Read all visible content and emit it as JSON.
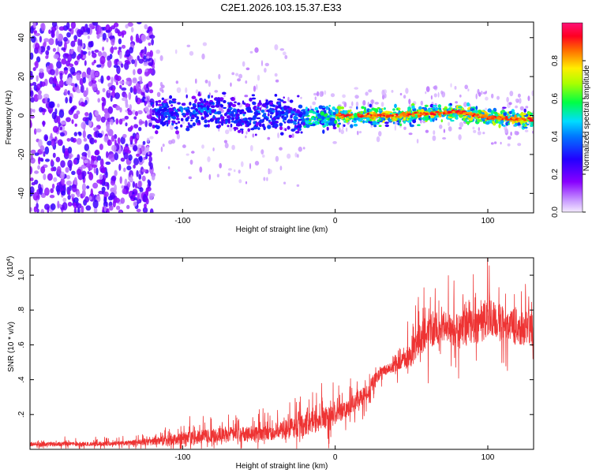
{
  "title": "C2E1.2026.103.15.37.E33",
  "chart_data": [
    {
      "type": "heatmap",
      "xlabel": "Height of straight line (km)",
      "ylabel": "Frequency (Hz)",
      "xlim": [
        -200,
        130
      ],
      "ylim": [
        -50,
        48
      ],
      "xticks": [
        -100,
        0,
        100
      ],
      "yticks": [
        -40,
        -20,
        0,
        20,
        40
      ],
      "colorbar": {
        "label": "Normalized spectral amplitude",
        "range": [
          0,
          1
        ],
        "ticks": [
          0.0,
          0.2,
          0.4,
          0.6,
          0.8
        ]
      },
      "description_points": {
        "noise_region_x": [
          -200,
          -125
        ],
        "band_center_hz": [
          [
            -120,
            0
          ],
          [
            -100,
            2
          ],
          [
            -80,
            3
          ],
          [
            -60,
            0
          ],
          [
            -40,
            1
          ],
          [
            -20,
            -2
          ],
          [
            0,
            0
          ],
          [
            20,
            0
          ],
          [
            40,
            0
          ],
          [
            60,
            1
          ],
          [
            80,
            2
          ],
          [
            100,
            -1
          ],
          [
            130,
            -2
          ]
        ]
      }
    },
    {
      "type": "line",
      "xlabel": "Height of straight line (km)",
      "ylabel": "SNR (10 * v/v)",
      "yscale_label": "(x10",
      "yscale_exp": "4",
      "yscale_close": ")",
      "xlim": [
        -200,
        130
      ],
      "ylim": [
        0,
        1.1
      ],
      "xticks": [
        -100,
        0,
        100
      ],
      "yticks": [
        0.2,
        0.4,
        0.6,
        0.8,
        1.0
      ],
      "series": [
        {
          "name": "SNR",
          "color": "#ee3333",
          "x": [
            -200,
            -180,
            -160,
            -140,
            -125,
            -110,
            -100,
            -80,
            -60,
            -40,
            -30,
            -20,
            -10,
            0,
            10,
            20,
            25,
            30,
            40,
            50,
            60,
            70,
            80,
            90,
            100,
            110,
            120,
            130
          ],
          "y": [
            0.03,
            0.03,
            0.03,
            0.035,
            0.04,
            0.05,
            0.06,
            0.08,
            0.09,
            0.1,
            0.12,
            0.14,
            0.17,
            0.2,
            0.25,
            0.32,
            0.38,
            0.45,
            0.48,
            0.55,
            0.68,
            0.7,
            0.68,
            0.7,
            0.75,
            0.72,
            0.7,
            0.68
          ],
          "spread": [
            0.02,
            0.02,
            0.02,
            0.02,
            0.03,
            0.05,
            0.06,
            0.07,
            0.07,
            0.08,
            0.1,
            0.1,
            0.11,
            0.1,
            0.08,
            0.08,
            0.08,
            0.05,
            0.05,
            0.12,
            0.16,
            0.16,
            0.16,
            0.17,
            0.2,
            0.17,
            0.17,
            0.16
          ]
        }
      ]
    }
  ]
}
